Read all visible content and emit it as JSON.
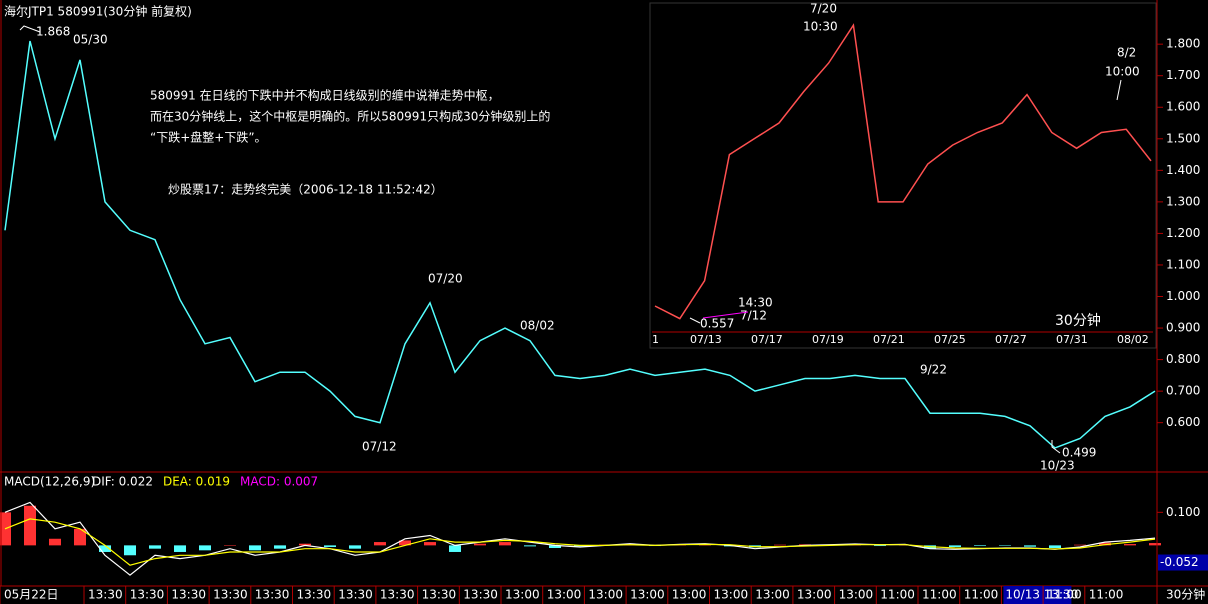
{
  "header": {
    "title": "海尔JTP1 580991(30分钟 前复权)"
  },
  "commentary": [
    "580991 在日线的下跌中并不构成日线级别的缠中说禅走势中枢，",
    "而在30分钟线上，这个中枢是明确的。所以580991只构成30分钟级别上的",
    "“下跌+盘整+下跌”。"
  ],
  "source": "炒股票17：走势终完美（2006-12-18 11:52:42）",
  "chart_data": [
    {
      "type": "line",
      "color": "#54ffff",
      "values": [
        1.21,
        1.81,
        1.5,
        1.75,
        1.3,
        1.21,
        1.18,
        0.99,
        0.85,
        0.87,
        0.73,
        0.76,
        0.76,
        0.7,
        0.62,
        0.6,
        0.85,
        0.98,
        0.76,
        0.86,
        0.9,
        0.86,
        0.75,
        0.74,
        0.75,
        0.77,
        0.75,
        0.76,
        0.77,
        0.75,
        0.7,
        0.72,
        0.74,
        0.74,
        0.75,
        0.74,
        0.74,
        0.63,
        0.63,
        0.63,
        0.62,
        0.59,
        0.52,
        0.55,
        0.62,
        0.65,
        0.7
      ],
      "ylim": [
        0.45,
        1.94
      ],
      "yticks": [
        {
          "value": 0.6,
          "label": "0.600"
        },
        {
          "value": 0.7,
          "label": "0.700"
        },
        {
          "value": 0.8,
          "label": "0.800"
        },
        {
          "value": 0.9,
          "label": "0.900"
        },
        {
          "value": 1.0,
          "label": "1.000"
        },
        {
          "value": 1.1,
          "label": "1.100"
        },
        {
          "value": 1.2,
          "label": "1.200"
        },
        {
          "value": 1.3,
          "label": "1.300"
        },
        {
          "value": 1.4,
          "label": "1.400"
        },
        {
          "value": 1.5,
          "label": "1.500"
        },
        {
          "value": 1.6,
          "label": "1.600"
        },
        {
          "value": 1.7,
          "label": "1.700"
        },
        {
          "value": 1.8,
          "label": "1.800"
        }
      ],
      "annotations": [
        "1.868",
        "05/30",
        "07/20",
        "08/02",
        "07/12",
        "9/22",
        "0.499",
        "10/23"
      ],
      "x_labels": [
        "05月22日",
        "13:30",
        "13:30",
        "13:30",
        "13:30",
        "13:30",
        "13:30",
        "13:30",
        "13:30",
        "13:30",
        "13:30",
        "13:00",
        "13:00",
        "13:00",
        "13:00",
        "13:00",
        "13:00",
        "13:00",
        "13:00",
        "13:00",
        "11:00",
        "11:00",
        "11:00",
        "10/13 13:30",
        "11:00",
        "11:00"
      ],
      "period_label": "30分钟"
    },
    {
      "type": "line",
      "color": "#ff5050",
      "values": [
        0.97,
        0.93,
        1.05,
        1.45,
        1.5,
        1.55,
        1.65,
        1.74,
        1.86,
        1.3,
        1.3,
        1.42,
        1.48,
        1.52,
        1.55,
        1.64,
        1.52,
        1.47,
        1.52,
        1.53,
        1.43
      ],
      "annotations": [
        "7/20",
        "10:30",
        "8/2",
        "10:00",
        "14:30",
        "7/12",
        "0.557"
      ],
      "x_labels": [
        "1",
        "07/13",
        "07/17",
        "07/19",
        "07/21",
        "07/25",
        "07/27",
        "07/31",
        "08/02"
      ],
      "period_label": "30分钟"
    },
    {
      "type": "macd",
      "title": "MACD(12,26,9)",
      "ylim": [
        -0.12,
        0.21
      ],
      "yticks": [
        {
          "value": 0.1,
          "label": "0.100"
        }
      ],
      "cursor_value": {
        "value": -0.052,
        "label": "-0.052"
      },
      "histogram": {
        "name": "MACD: 0.007",
        "color": "#ff00ff",
        "color_up": "#ff3232",
        "color_down": "#54ffff",
        "values": [
          0.1,
          0.12,
          0.02,
          0.05,
          -0.02,
          -0.03,
          -0.01,
          -0.02,
          -0.015,
          0.0,
          -0.015,
          -0.01,
          0.005,
          -0.005,
          -0.01,
          0.01,
          0.015,
          0.01,
          -0.02,
          0.005,
          0.01,
          -0.003,
          -0.008,
          -0.003,
          0.002,
          0.004,
          -0.002,
          0.002,
          0.004,
          -0.003,
          -0.006,
          0.002,
          0.003,
          0.002,
          0.003,
          -0.002,
          0.002,
          -0.01,
          -0.005,
          -0.002,
          -0.001,
          -0.004,
          -0.008,
          0.002,
          0.008,
          0.004,
          0.007
        ]
      },
      "series": [
        {
          "name": "DIF: 0.022",
          "color": "#ffffff",
          "values": [
            0.1,
            0.13,
            0.05,
            0.07,
            -0.03,
            -0.09,
            -0.03,
            -0.04,
            -0.03,
            -0.01,
            -0.03,
            -0.02,
            0.0,
            -0.01,
            -0.03,
            -0.02,
            0.02,
            0.03,
            0.0,
            0.01,
            0.02,
            0.01,
            0.0,
            -0.005,
            0.0,
            0.005,
            0.0,
            0.003,
            0.005,
            0.0,
            -0.01,
            -0.005,
            0.0,
            0.002,
            0.004,
            0.002,
            0.003,
            -0.01,
            -0.012,
            -0.01,
            -0.008,
            -0.008,
            -0.012,
            -0.005,
            0.01,
            0.015,
            0.022
          ]
        },
        {
          "name": "DEA: 0.019",
          "color": "#ffff00",
          "values": [
            0.05,
            0.08,
            0.07,
            0.05,
            0.0,
            -0.06,
            -0.04,
            -0.03,
            -0.03,
            -0.02,
            -0.02,
            -0.02,
            -0.01,
            -0.01,
            -0.02,
            -0.02,
            0.0,
            0.02,
            0.01,
            0.01,
            0.015,
            0.012,
            0.005,
            0.0,
            0.0,
            0.002,
            0.0,
            0.002,
            0.003,
            0.002,
            -0.004,
            -0.004,
            -0.002,
            0.0,
            0.002,
            0.002,
            0.002,
            -0.004,
            -0.008,
            -0.009,
            -0.009,
            -0.009,
            -0.011,
            -0.008,
            0.002,
            0.01,
            0.019
          ]
        }
      ]
    }
  ]
}
